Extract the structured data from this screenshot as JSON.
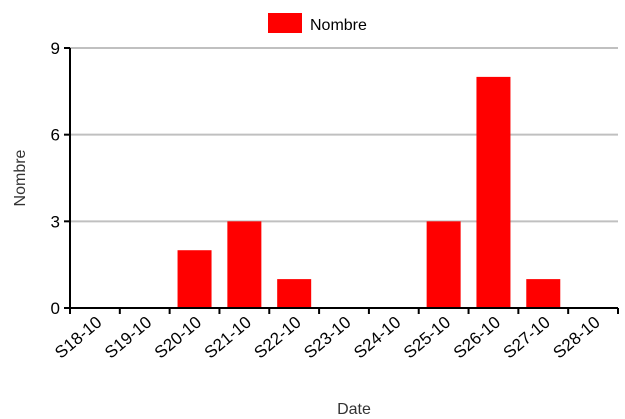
{
  "chart_data": {
    "type": "bar",
    "categories": [
      "S18-10",
      "S19-10",
      "S20-10",
      "S21-10",
      "S22-10",
      "S23-10",
      "S24-10",
      "S25-10",
      "S26-10",
      "S27-10",
      "S28-10"
    ],
    "series": [
      {
        "name": "Nombre",
        "color": "#ff0000",
        "values": [
          0,
          0,
          2,
          3,
          1,
          0,
          0,
          3,
          8,
          1,
          0
        ]
      }
    ],
    "xlabel": "Date",
    "ylabel": "Nombre",
    "ylim": [
      0,
      9
    ],
    "yticks": [
      "0",
      "3",
      "6",
      "9"
    ],
    "grid": true,
    "legend": "top-center"
  }
}
